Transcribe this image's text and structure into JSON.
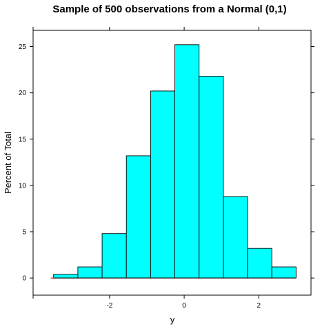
{
  "chart_data": {
    "type": "bar",
    "title": "Sample of 500 observations from a Normal (0,1)",
    "xlabel": "y",
    "ylabel": "Percent of Total",
    "bins": [
      {
        "x0": -3.5,
        "x1": -2.85,
        "value": 0.4
      },
      {
        "x0": -2.85,
        "x1": -2.2,
        "value": 1.2
      },
      {
        "x0": -2.2,
        "x1": -1.55,
        "value": 4.8
      },
      {
        "x0": -1.55,
        "x1": -0.9,
        "value": 13.2
      },
      {
        "x0": -0.9,
        "x1": -0.25,
        "value": 20.2
      },
      {
        "x0": -0.25,
        "x1": 0.4,
        "value": 25.2
      },
      {
        "x0": 0.4,
        "x1": 1.05,
        "value": 21.8
      },
      {
        "x0": 1.05,
        "x1": 1.7,
        "value": 8.8
      },
      {
        "x0": 1.7,
        "x1": 2.35,
        "value": 3.2
      },
      {
        "x0": 2.35,
        "x1": 3.0,
        "value": 1.2
      }
    ],
    "xlim": [
      -4.05,
      3.4
    ],
    "ylim": [
      -1.85,
      26.75
    ],
    "xticks": [
      -2,
      0,
      2
    ],
    "yticks": [
      0,
      5,
      10,
      15,
      20,
      25
    ],
    "bar_color": "#00FFFF",
    "rug_color": "#FF0000",
    "grid": false
  }
}
